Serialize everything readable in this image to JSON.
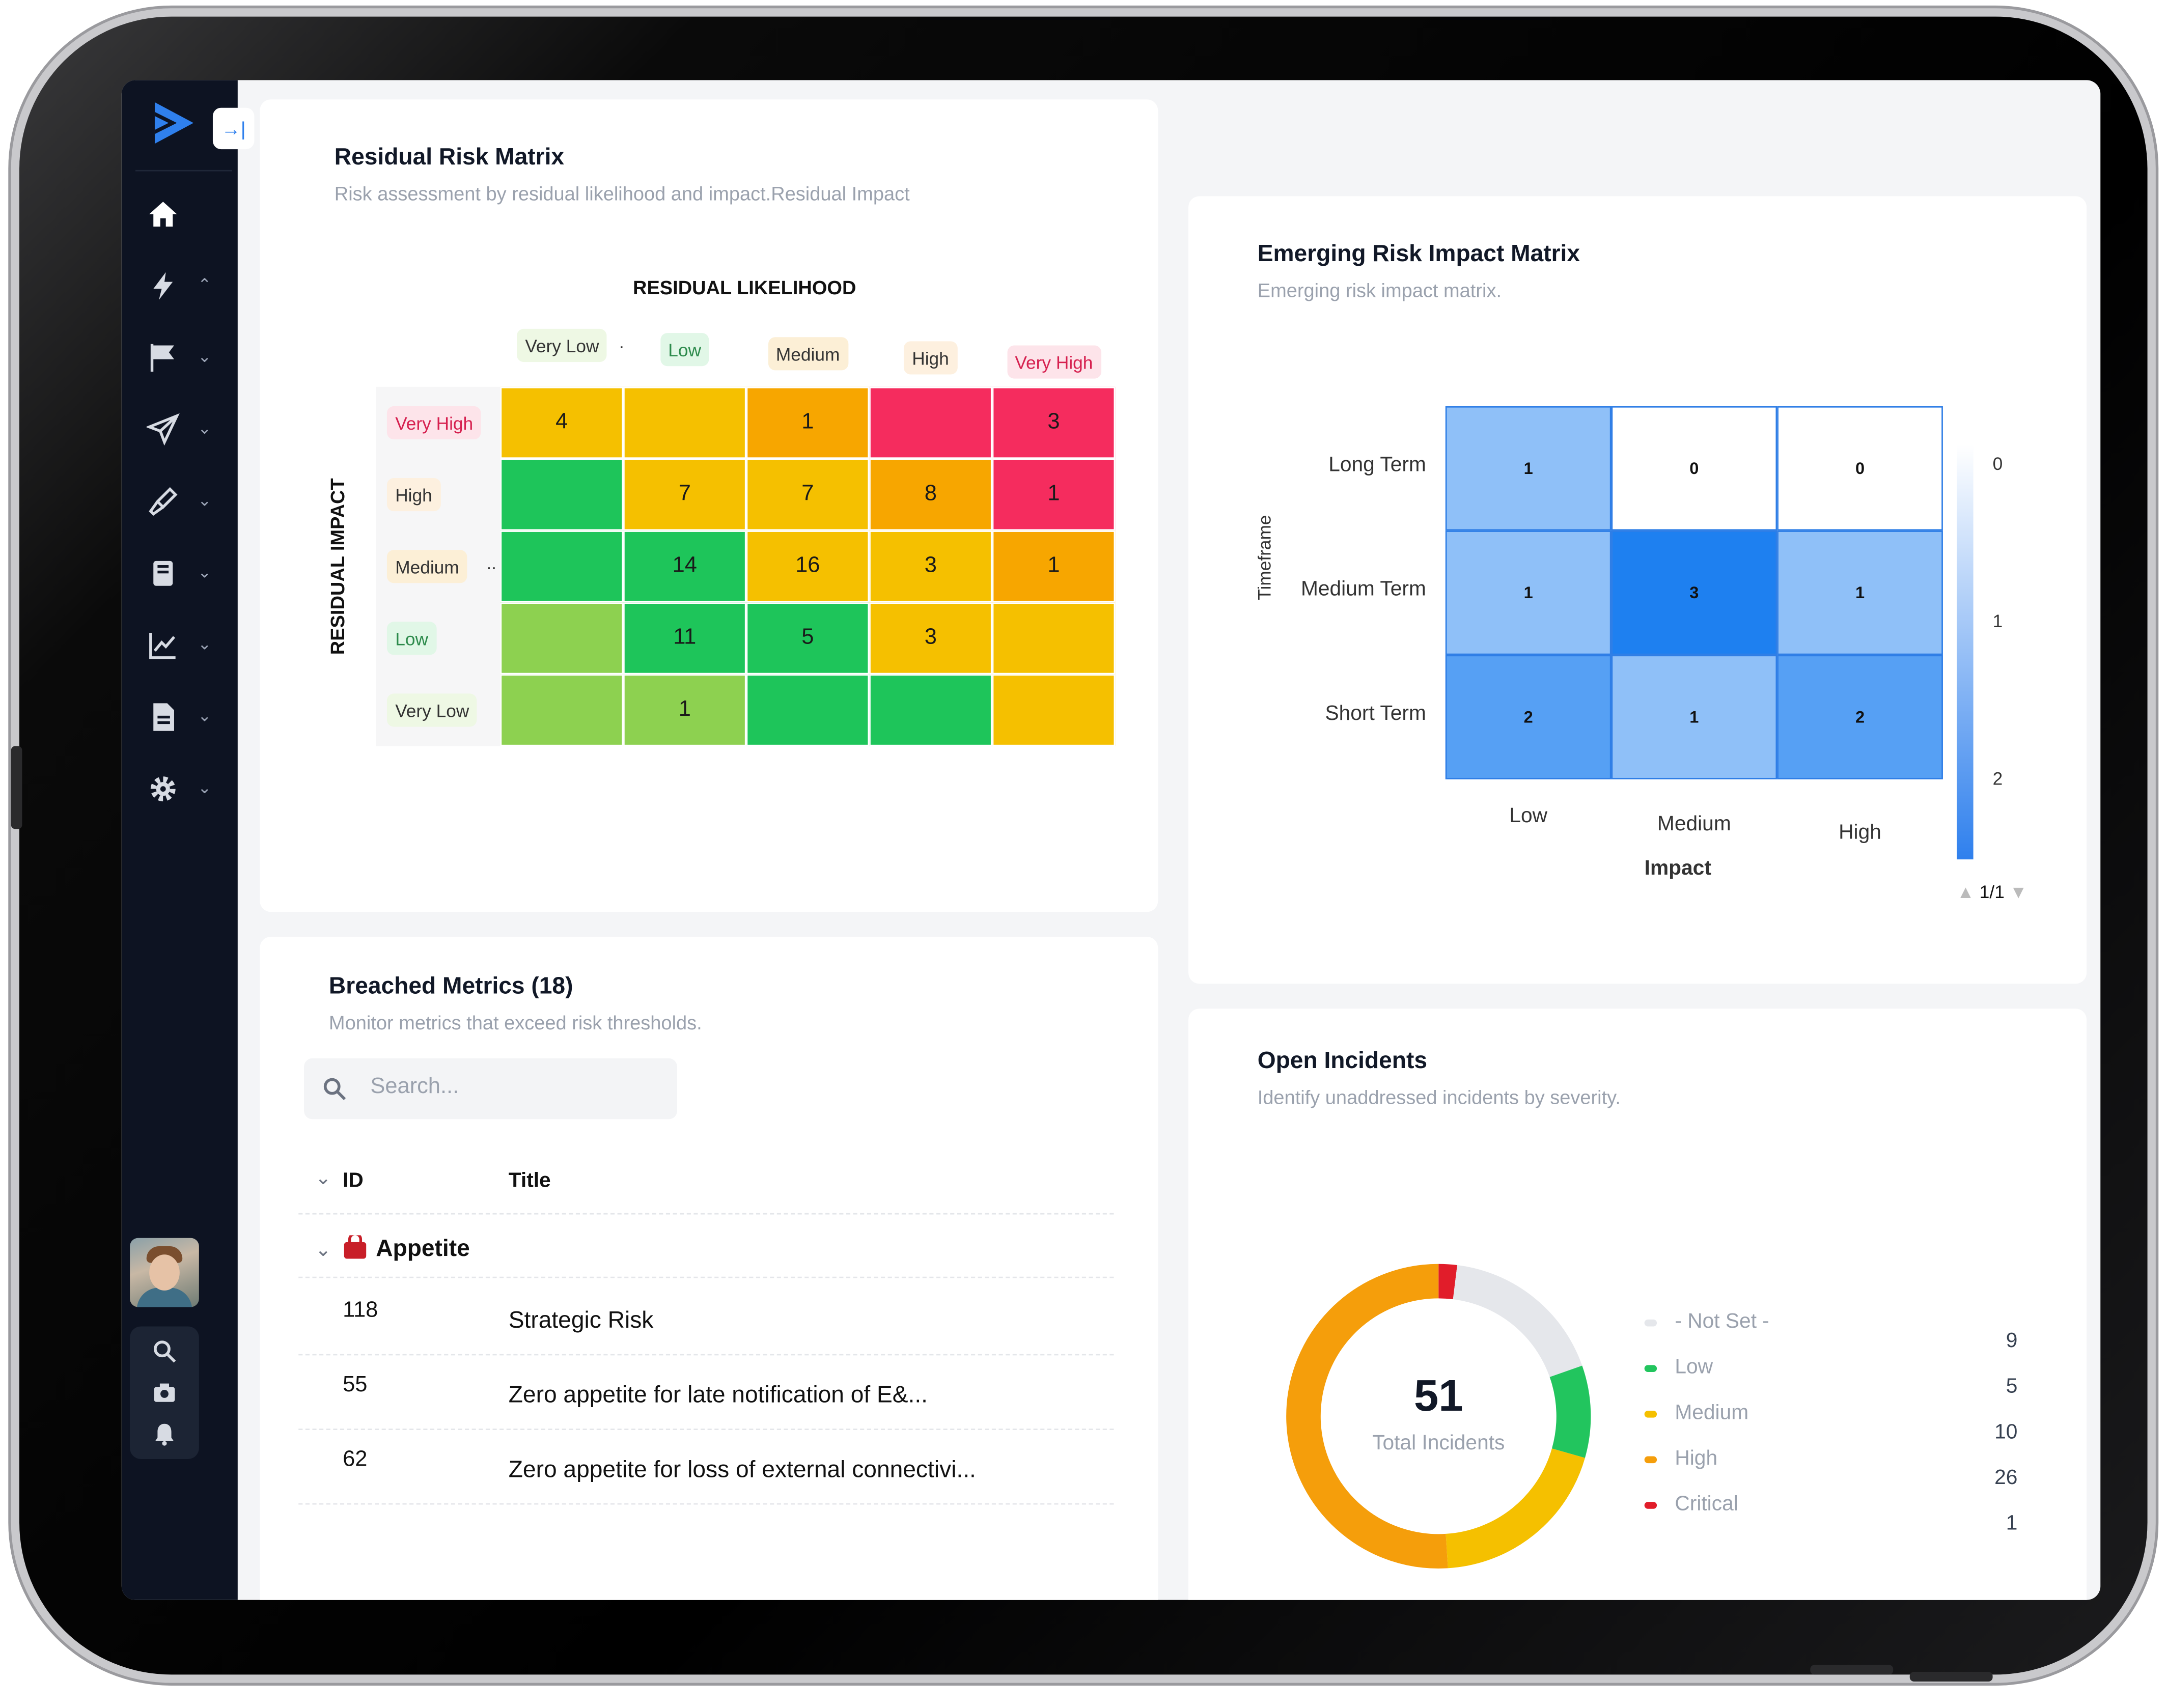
{
  "sidebar": {
    "collapse_glyph": "→|",
    "nav_icons": [
      "home-icon",
      "lightning-icon",
      "flag-icon",
      "send-icon",
      "eyedropper-icon",
      "book-icon",
      "chart-line-icon",
      "document-icon",
      "gear-icon"
    ],
    "tools": [
      "search-icon",
      "camera-icon",
      "bell-icon"
    ]
  },
  "residual": {
    "title": "Residual Risk Matrix",
    "subtitle": "Risk assessment by residual likelihood and impact.Residual Impact",
    "x_title": "RESIDUAL LIKELIHOOD",
    "y_title": "RESIDUAL IMPACT",
    "columns": [
      "Very Low",
      "Low",
      "Medium",
      "High",
      "Very High"
    ],
    "x_overflow_mark": ".",
    "rows": [
      "Very High",
      "High",
      "Medium",
      "Low",
      "Very Low"
    ],
    "y_overflow_mark": "..",
    "cells": [
      [
        "4",
        "",
        "1",
        "",
        "3"
      ],
      [
        "",
        "7",
        "7",
        "8",
        "1"
      ],
      [
        "",
        "14",
        "16",
        "3",
        "1"
      ],
      [
        "",
        "11",
        "5",
        "3",
        ""
      ],
      [
        "",
        "1",
        "",
        "",
        ""
      ]
    ],
    "cell_colors": [
      [
        "#f5c000",
        "#f5c000",
        "#f7a600",
        "#f52c5e",
        "#f52c5e"
      ],
      [
        "#1ec55a",
        "#f5c000",
        "#f5c000",
        "#f7a600",
        "#f52c5e"
      ],
      [
        "#1ec55a",
        "#1ec55a",
        "#f5c000",
        "#f5c000",
        "#f7a600"
      ],
      [
        "#8dd150",
        "#1ec55a",
        "#1ec55a",
        "#f5c000",
        "#f5c000"
      ],
      [
        "#8dd150",
        "#8dd150",
        "#1ec55a",
        "#1ec55a",
        "#f5c000"
      ]
    ],
    "label_styles": {
      "Very Low": {
        "bg": "#eef8e4",
        "fg": "#333"
      },
      "Low": {
        "bg": "#e1f7e7",
        "fg": "#2c8a4b"
      },
      "Medium": {
        "bg": "#fcefd6",
        "fg": "#333"
      },
      "High": {
        "bg": "#fdf0df",
        "fg": "#333"
      },
      "Very High": {
        "bg": "#fde4ea",
        "fg": "#d6204f"
      }
    }
  },
  "emerging": {
    "title": "Emerging Risk Impact Matrix",
    "subtitle": "Emerging risk impact matrix.",
    "y_title": "Timeframe",
    "x_title": "Impact",
    "rows": [
      "Long Term",
      "Medium Term",
      "Short Term"
    ],
    "columns": [
      "Low",
      "Medium",
      "High"
    ],
    "values": [
      [
        1,
        0,
        0
      ],
      [
        1,
        3,
        1
      ],
      [
        2,
        1,
        2
      ]
    ],
    "scale_labels": [
      "0",
      "1",
      "2"
    ],
    "pager": "1/1",
    "pager_prev": "▲",
    "pager_next": "▼"
  },
  "breached": {
    "title": "Breached Metrics (18)",
    "subtitle": "Monitor metrics that exceed risk thresholds.",
    "search_placeholder": "Search...",
    "col_id": "ID",
    "col_title": "Title",
    "group": "Appetite",
    "rows": [
      {
        "id": "118",
        "title": "Strategic Risk"
      },
      {
        "id": "55",
        "title": "Zero appetite for late notification of E&..."
      },
      {
        "id": "62",
        "title": "Zero appetite for loss of external connectivi..."
      }
    ]
  },
  "incidents": {
    "title": "Open Incidents",
    "subtitle": "Identify unaddressed incidents by severity.",
    "total": "51",
    "total_label": "Total Incidents",
    "chart_data": {
      "type": "pie",
      "categories": [
        "- Not Set -",
        "Low",
        "Medium",
        "High",
        "Critical"
      ],
      "values": [
        9,
        5,
        10,
        26,
        1
      ],
      "colors": [
        "#e5e7eb",
        "#22c55e",
        "#f5c000",
        "#f59e0b",
        "#e11d2a"
      ]
    }
  }
}
